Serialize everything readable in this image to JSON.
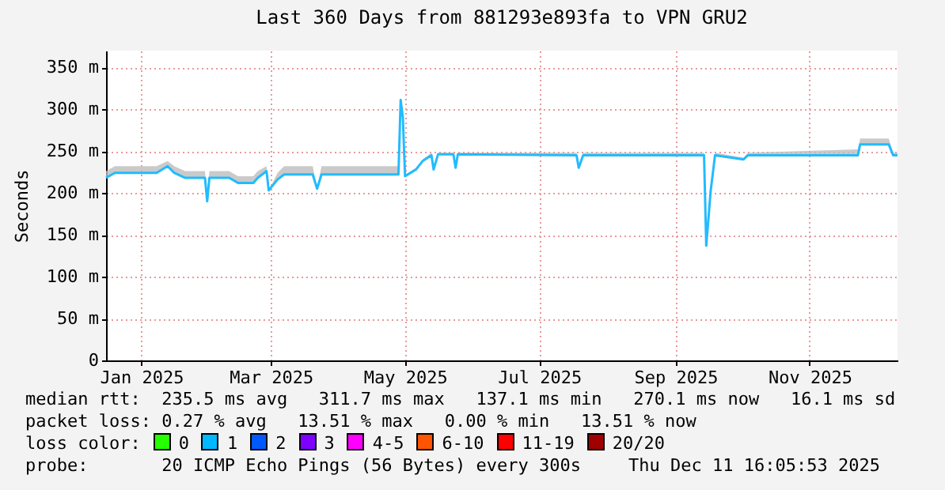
{
  "chart_data": {
    "type": "line",
    "title": "Last 360 Days from 881293e893fa to VPN GRU2",
    "ylabel": "Seconds",
    "x": [
      "2024-12-16",
      "2024-12-20",
      "2025-01-08",
      "2025-01-13",
      "2025-01-16",
      "2025-01-21",
      "2025-01-30",
      "2025-01-31",
      "2025-02-01",
      "2025-02-10",
      "2025-02-14",
      "2025-02-21",
      "2025-02-23",
      "2025-02-27",
      "2025-02-28",
      "2025-03-04",
      "2025-03-07",
      "2025-03-20",
      "2025-03-22",
      "2025-03-24",
      "2025-04-28",
      "2025-04-29",
      "2025-04-30",
      "2025-05-01",
      "2025-05-06",
      "2025-05-09",
      "2025-05-13",
      "2025-05-14",
      "2025-05-16",
      "2025-05-23",
      "2025-05-24",
      "2025-05-25",
      "2025-07-18",
      "2025-07-19",
      "2025-07-21",
      "2025-09-14",
      "2025-09-15",
      "2025-09-17",
      "2025-09-19",
      "2025-10-02",
      "2025-10-04",
      "2025-11-23",
      "2025-11-24",
      "2025-12-07",
      "2025-12-09",
      "2025-12-11"
    ],
    "series": [
      {
        "color": "#22bbff",
        "values": [
          218,
          224,
          224,
          232,
          224,
          218,
          218,
          190,
          218,
          218,
          212,
          212,
          218,
          226,
          203,
          216,
          222,
          222,
          205,
          222,
          222,
          311,
          290,
          220,
          228,
          238,
          245,
          228,
          246,
          246,
          230,
          246,
          245,
          230,
          245,
          245,
          137,
          202,
          245,
          240,
          245,
          245,
          258,
          258,
          245,
          245
        ],
        "lower": [
          218,
          224,
          224,
          232,
          224,
          218,
          218,
          190,
          218,
          218,
          212,
          212,
          218,
          226,
          203,
          216,
          222,
          222,
          205,
          222,
          222,
          311,
          290,
          220,
          228,
          238,
          245,
          228,
          246,
          246,
          230,
          246,
          245,
          230,
          245,
          245,
          137,
          202,
          245,
          240,
          245,
          245,
          258,
          258,
          245,
          245
        ],
        "upper": [
          226,
          232,
          232,
          238,
          232,
          226,
          226,
          190,
          226,
          226,
          220,
          220,
          226,
          232,
          203,
          224,
          232,
          232,
          205,
          232,
          232,
          311,
          290,
          222,
          230,
          240,
          248,
          230,
          248,
          248,
          230,
          248,
          248,
          230,
          248,
          248,
          137,
          202,
          248,
          242,
          248,
          252,
          265,
          265,
          248,
          248
        ]
      }
    ],
    "xlim": [
      "2024-12-16",
      "2025-12-11"
    ],
    "xticks": [
      {
        "value": "2025-01-01",
        "label": "Jan 2025"
      },
      {
        "value": "2025-03-01",
        "label": "Mar 2025"
      },
      {
        "value": "2025-05-01",
        "label": "May 2025"
      },
      {
        "value": "2025-07-01",
        "label": "Jul 2025"
      },
      {
        "value": "2025-09-01",
        "label": "Sep 2025"
      },
      {
        "value": "2025-11-01",
        "label": "Nov 2025"
      }
    ],
    "ylim": [
      0,
      370
    ],
    "yticks": [
      0,
      {
        "value": 50,
        "label": "50 m"
      },
      {
        "value": 100,
        "label": "100 m"
      },
      {
        "value": 150,
        "label": "150 m"
      },
      {
        "value": 200,
        "label": "200 m"
      },
      {
        "value": 250,
        "label": "250 m"
      },
      {
        "value": 300,
        "label": "300 m"
      },
      {
        "value": 350,
        "label": "350 m"
      }
    ],
    "grid": true,
    "legend": false,
    "annotations": [
      "median rtt:  235.5 ms avg   311.7 ms max   137.1 ms min   270.1 ms now   16.1 ms sd",
      "packet loss: 0.27 % avg   13.51 % max   0.00 % min   13.51 % now",
      "loss color:",
      "0",
      "1",
      "2",
      "3",
      "4-5",
      "6-10",
      "11-19",
      "20/20",
      "probe:       20 ICMP Echo Pings (56 Bytes) every 300s",
      "Thu Dec 11 16:05:53 2025"
    ]
  }
}
